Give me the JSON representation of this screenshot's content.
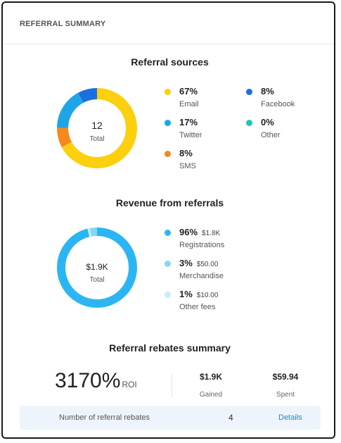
{
  "card": {
    "title": "REFERRAL SUMMARY"
  },
  "sources": {
    "title": "Referral sources",
    "total_value": "12",
    "total_label": "Total",
    "items": [
      {
        "pct": "67%",
        "label": "Email",
        "value": 67,
        "color": "#fccf0f"
      },
      {
        "pct": "8%",
        "label": "Facebook",
        "value": 8,
        "color": "#1c6fe0"
      },
      {
        "pct": "17%",
        "label": "Twitter",
        "value": 17,
        "color": "#1ea5e8"
      },
      {
        "pct": "0%",
        "label": "Other",
        "value": 0,
        "color": "#1fc6b6"
      },
      {
        "pct": "8%",
        "label": "SMS",
        "value": 8,
        "color": "#f7881c"
      }
    ]
  },
  "revenue": {
    "title": "Revenue from referrals",
    "total_value": "$1.9K",
    "total_label": "Total",
    "items": [
      {
        "pct": "96%",
        "amount": "$1.8K",
        "label": "Registrations",
        "value": 96,
        "color": "#2bb6f3"
      },
      {
        "pct": "3%",
        "amount": "$50.00",
        "label": "Merchandise",
        "value": 3,
        "color": "#86d6f7"
      },
      {
        "pct": "1%",
        "amount": "$10.00",
        "label": "Other fees",
        "value": 1,
        "color": "#c8ecfb"
      }
    ]
  },
  "rebates": {
    "title": "Referral rebates summary",
    "roi_value": "3170%",
    "roi_suffix": "ROI",
    "gained_value": "$1.9K",
    "gained_label": "Gained",
    "spent_value": "$59.94",
    "spent_label": "Spent"
  },
  "footer": {
    "label": "Number of referral rebates",
    "count": "4",
    "link": "Details"
  }
}
